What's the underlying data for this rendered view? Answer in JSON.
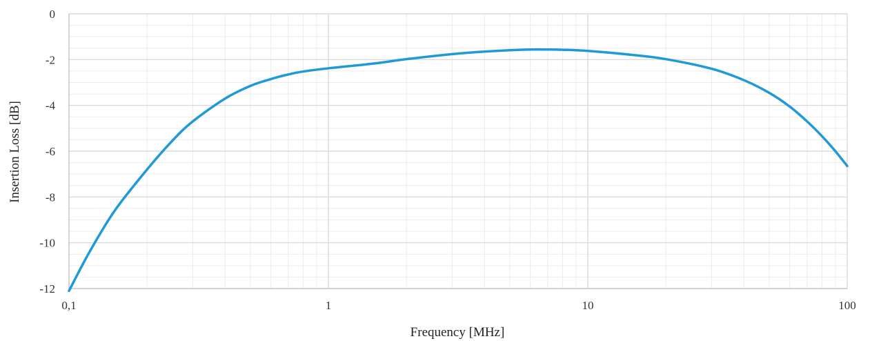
{
  "chart_data": {
    "type": "line",
    "xlabel": "Frequency [MHz]",
    "ylabel": "Insertion Loss [dB]",
    "x_scale": "log",
    "xlim": [
      0.1,
      100
    ],
    "ylim": [
      -12,
      0
    ],
    "x_ticks": [
      0.1,
      1,
      10,
      100
    ],
    "x_tick_labels": [
      "0,1",
      "1",
      "10",
      "100"
    ],
    "y_ticks": [
      0,
      -2,
      -4,
      -6,
      -8,
      -10,
      -12
    ],
    "y_tick_labels": [
      "0",
      "-2",
      "-4",
      "-6",
      "-8",
      "-10",
      "-12"
    ],
    "grid": true,
    "legend": "none",
    "series_color": "#1f9ad6",
    "series": [
      {
        "x": [
          0.1,
          0.12,
          0.15,
          0.2,
          0.25,
          0.3,
          0.4,
          0.5,
          0.6,
          0.7,
          0.8,
          1,
          1.5,
          2,
          3,
          4,
          5,
          6,
          7,
          8,
          10,
          15,
          20,
          30,
          40,
          50,
          60,
          70,
          80,
          90,
          100
        ],
        "y": [
          -12.1,
          -10.4,
          -8.6,
          -6.8,
          -5.55,
          -4.7,
          -3.7,
          -3.15,
          -2.85,
          -2.65,
          -2.52,
          -2.38,
          -2.17,
          -1.98,
          -1.76,
          -1.65,
          -1.59,
          -1.56,
          -1.56,
          -1.57,
          -1.62,
          -1.8,
          -1.98,
          -2.4,
          -2.9,
          -3.45,
          -4.05,
          -4.7,
          -5.35,
          -6.0,
          -6.65
        ]
      }
    ]
  }
}
